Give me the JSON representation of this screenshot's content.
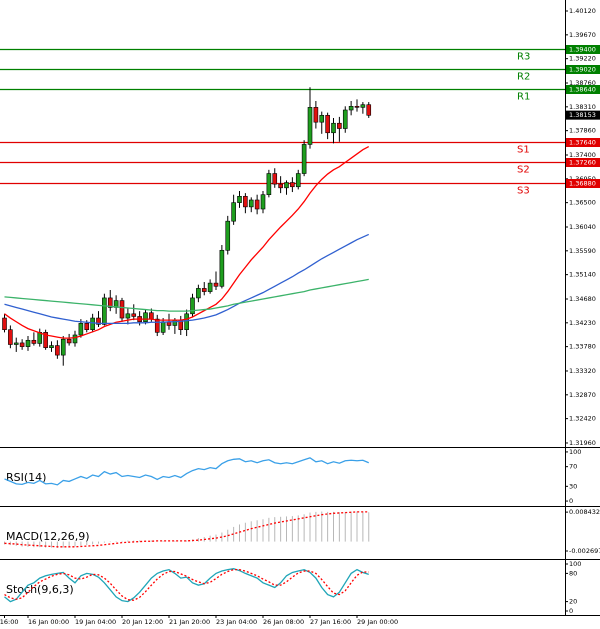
{
  "chart_data": [
    {
      "type": "candlestick",
      "categories": [
        "16:00",
        null,
        null,
        null,
        "16 Jan 00:00",
        null,
        null,
        null,
        null,
        null,
        null,
        null,
        "19 Jan 04:00",
        null,
        null,
        null,
        null,
        null,
        null,
        null,
        "20 Jan 12:00",
        null,
        null,
        null,
        null,
        null,
        null,
        null,
        "21 Jan 20:00",
        null,
        null,
        null,
        null,
        null,
        null,
        null,
        "23 Jan 04:00",
        null,
        null,
        null,
        null,
        null,
        null,
        null,
        "26 Jan 08:00",
        null,
        null,
        null,
        null,
        null,
        null,
        null,
        "27 Jan 16:00",
        null,
        null,
        null,
        null,
        null,
        null,
        null,
        "29 Jan 00:00",
        null,
        null
      ],
      "open": [
        1.3432,
        1.341,
        1.3382,
        1.3385,
        1.3378,
        1.339,
        1.3384,
        1.3405,
        1.3376,
        1.338,
        1.3362,
        1.3392,
        1.3385,
        1.34,
        1.3422,
        1.341,
        1.3432,
        1.342,
        1.347,
        1.3452,
        1.3465,
        1.3432,
        1.344,
        1.3435,
        1.3425,
        1.3442,
        1.343,
        1.3405,
        1.3425,
        1.3418,
        1.3428,
        1.341,
        1.344,
        1.347,
        1.3488,
        1.3482,
        1.3498,
        1.3492,
        1.356,
        1.3615,
        1.365,
        1.3662,
        1.3642,
        1.3655,
        1.3638,
        1.3665,
        1.3705,
        1.3685,
        1.3678,
        1.3688,
        1.368,
        1.3705,
        1.376,
        1.383,
        1.3802,
        1.3815,
        1.3782,
        1.38,
        1.379,
        1.3825,
        1.3832,
        1.383,
        1.3835
      ],
      "high": [
        1.344,
        1.3418,
        1.3395,
        1.3392,
        1.3398,
        1.3405,
        1.3412,
        1.341,
        1.3388,
        1.339,
        1.3398,
        1.3402,
        1.3408,
        1.343,
        1.3428,
        1.344,
        1.3445,
        1.3478,
        1.3485,
        1.3475,
        1.347,
        1.345,
        1.3458,
        1.3445,
        1.3448,
        1.345,
        1.3438,
        1.3432,
        1.344,
        1.3432,
        1.3436,
        1.3448,
        1.3478,
        1.3495,
        1.35,
        1.3505,
        1.352,
        1.357,
        1.3625,
        1.3665,
        1.3672,
        1.3668,
        1.366,
        1.3665,
        1.3672,
        1.3712,
        1.3715,
        1.37,
        1.3692,
        1.3698,
        1.3712,
        1.3768,
        1.3868,
        1.3842,
        1.3822,
        1.382,
        1.381,
        1.3812,
        1.3832,
        1.3842,
        1.3845,
        1.384,
        1.384
      ],
      "low": [
        1.3405,
        1.3375,
        1.3368,
        1.3372,
        1.337,
        1.338,
        1.3378,
        1.3372,
        1.3368,
        1.3355,
        1.3342,
        1.338,
        1.3378,
        1.3395,
        1.3405,
        1.3405,
        1.3415,
        1.3418,
        1.3445,
        1.344,
        1.3425,
        1.342,
        1.3428,
        1.3418,
        1.342,
        1.3425,
        1.3398,
        1.34,
        1.341,
        1.3402,
        1.34,
        1.3398,
        1.3435,
        1.3462,
        1.3475,
        1.3478,
        1.3485,
        1.3488,
        1.3552,
        1.3608,
        1.364,
        1.363,
        1.3632,
        1.3628,
        1.363,
        1.366,
        1.3678,
        1.3668,
        1.3665,
        1.367,
        1.3675,
        1.37,
        1.3752,
        1.379,
        1.378,
        1.377,
        1.3762,
        1.3765,
        1.3782,
        1.3815,
        1.3822,
        1.3818,
        1.381
      ],
      "close": [
        1.341,
        1.3382,
        1.3385,
        1.3378,
        1.339,
        1.3384,
        1.3405,
        1.3376,
        1.338,
        1.3362,
        1.3392,
        1.3385,
        1.34,
        1.3422,
        1.341,
        1.3432,
        1.342,
        1.347,
        1.3452,
        1.3465,
        1.3432,
        1.344,
        1.3435,
        1.3425,
        1.3442,
        1.343,
        1.3405,
        1.3425,
        1.3418,
        1.3428,
        1.341,
        1.344,
        1.347,
        1.3488,
        1.3482,
        1.3498,
        1.3492,
        1.356,
        1.3615,
        1.365,
        1.3662,
        1.3642,
        1.3655,
        1.3638,
        1.3665,
        1.3705,
        1.3685,
        1.3678,
        1.3688,
        1.368,
        1.3705,
        1.376,
        1.383,
        1.3802,
        1.3815,
        1.3782,
        1.38,
        1.379,
        1.3825,
        1.3832,
        1.383,
        1.3835,
        1.3815
      ],
      "up_color": "#1e9e1e",
      "down_color": "#e01010",
      "series": [
        {
          "color": "#ff0000",
          "values": [
            1.344,
            1.3432,
            1.3425,
            1.3418,
            1.3412,
            1.3408,
            1.3404,
            1.34,
            1.3398,
            1.3396,
            1.3394,
            1.3394,
            1.3395,
            1.3398,
            1.3402,
            1.3406,
            1.341,
            1.3416,
            1.342,
            1.3424,
            1.3426,
            1.3428,
            1.343,
            1.343,
            1.343,
            1.343,
            1.3428,
            1.3428,
            1.3428,
            1.3428,
            1.3428,
            1.343,
            1.3434,
            1.344,
            1.3446,
            1.3452,
            1.3458,
            1.3468,
            1.3482,
            1.3498,
            1.3514,
            1.3528,
            1.3542,
            1.3554,
            1.3566,
            1.358,
            1.3592,
            1.3604,
            1.3615,
            1.3626,
            1.3638,
            1.3652,
            1.3668,
            1.3682,
            1.3694,
            1.3704,
            1.3712,
            1.3718,
            1.3726,
            1.3734,
            1.3742,
            1.375,
            1.3756
          ]
        },
        {
          "color": "#3060d0",
          "values": [
            1.3458,
            1.3455,
            1.3452,
            1.3449,
            1.3446,
            1.3443,
            1.344,
            1.3437,
            1.3434,
            1.3432,
            1.343,
            1.3428,
            1.3426,
            1.3425,
            1.3424,
            1.3423,
            1.3422,
            1.3422,
            1.3422,
            1.3422,
            1.3422,
            1.3422,
            1.3423,
            1.3423,
            1.3423,
            1.3424,
            1.3424,
            1.3424,
            1.3425,
            1.3425,
            1.3426,
            1.3427,
            1.3428,
            1.343,
            1.3432,
            1.3435,
            1.3438,
            1.3443,
            1.3448,
            1.3454,
            1.346,
            1.3465,
            1.347,
            1.3475,
            1.348,
            1.3486,
            1.3492,
            1.3498,
            1.3504,
            1.351,
            1.3517,
            1.3523,
            1.353,
            1.3537,
            1.3544,
            1.355,
            1.3556,
            1.3562,
            1.3568,
            1.3574,
            1.358,
            1.3585,
            1.359
          ]
        },
        {
          "color": "#3cb36a",
          "values": [
            1.3472,
            1.3471,
            1.347,
            1.3469,
            1.3468,
            1.3467,
            1.3466,
            1.3465,
            1.3464,
            1.3463,
            1.3462,
            1.3461,
            1.346,
            1.3459,
            1.3458,
            1.3457,
            1.3456,
            1.3455,
            1.3454,
            1.3453,
            1.3452,
            1.3451,
            1.345,
            1.3449,
            1.3448,
            1.3447,
            1.3446,
            1.3446,
            1.3445,
            1.3445,
            1.3445,
            1.3445,
            1.3446,
            1.3447,
            1.3448,
            1.3449,
            1.3451,
            1.3453,
            1.3455,
            1.3458,
            1.346,
            1.3462,
            1.3464,
            1.3466,
            1.3468,
            1.347,
            1.3472,
            1.3474,
            1.3476,
            1.3478,
            1.348,
            1.3482,
            1.3485,
            1.3487,
            1.3489,
            1.3491,
            1.3493,
            1.3495,
            1.3497,
            1.3499,
            1.3501,
            1.3503,
            1.3505
          ]
        }
      ],
      "ylim": [
        1.31884,
        1.40328
      ],
      "yticks": [
        {
          "value": 1.4012,
          "label": "1.40120"
        },
        {
          "value": 1.3967,
          "label": "1.39670"
        },
        {
          "value": 1.3922,
          "label": "1.39220"
        },
        {
          "value": 1.3876,
          "label": "1.38760"
        },
        {
          "value": 1.3831,
          "label": "1.38310"
        },
        {
          "value": 1.3786,
          "label": "1.37860"
        },
        {
          "value": 1.374,
          "label": "1.37400"
        },
        {
          "value": 1.3695,
          "label": "1.36950"
        },
        {
          "value": 1.365,
          "label": "1.36500"
        },
        {
          "value": 1.3604,
          "label": "1.36040"
        },
        {
          "value": 1.3559,
          "label": "1.35590"
        },
        {
          "value": 1.3514,
          "label": "1.35140"
        },
        {
          "value": 1.3468,
          "label": "1.34680"
        },
        {
          "value": 1.3423,
          "label": "1.34230"
        },
        {
          "value": 1.3378,
          "label": "1.33780"
        },
        {
          "value": 1.3332,
          "label": "1.33320"
        },
        {
          "value": 1.3287,
          "label": "1.32870"
        },
        {
          "value": 1.3242,
          "label": "1.32420"
        },
        {
          "value": 1.3196,
          "label": "1.31960"
        }
      ],
      "levels": [
        {
          "label": "R3",
          "value": 1.394,
          "value_label": "1.39400",
          "color": "#008000"
        },
        {
          "label": "R2",
          "value": 1.3902,
          "value_label": "1.39020",
          "color": "#008000"
        },
        {
          "label": "R1",
          "value": 1.3864,
          "value_label": "1.38640",
          "color": "#008000"
        },
        {
          "label": "S1",
          "value": 1.3764,
          "value_label": "1.37640",
          "color": "#e00000"
        },
        {
          "label": "S2",
          "value": 1.3726,
          "value_label": "1.37260",
          "color": "#e00000"
        },
        {
          "label": "S3",
          "value": 1.3688,
          "value_label": "1.36880",
          "color": "#e00000"
        }
      ],
      "current": {
        "value": 1.38153,
        "label": "1.38153",
        "color": "#000000"
      }
    },
    {
      "type": "line",
      "title": "RSI(14)",
      "ylim": [
        -8,
        108
      ],
      "yticks": [
        100,
        70,
        30,
        0
      ],
      "series": [
        {
          "color": "#3aa0e8",
          "values": [
            45,
            40,
            35,
            34,
            38,
            36,
            42,
            35,
            36,
            33,
            42,
            40,
            45,
            50,
            46,
            53,
            50,
            60,
            55,
            58,
            50,
            52,
            50,
            48,
            53,
            50,
            44,
            50,
            48,
            52,
            48,
            56,
            62,
            66,
            64,
            68,
            66,
            76,
            82,
            85,
            86,
            80,
            82,
            78,
            82,
            84,
            78,
            76,
            78,
            76,
            80,
            84,
            88,
            80,
            82,
            76,
            80,
            77,
            82,
            83,
            82,
            83,
            78
          ]
        }
      ]
    },
    {
      "type": "bar",
      "title": "MACD(12,26,9)",
      "ylim": [
        -0.0047,
        0.0099
      ],
      "yticks": [
        0.008432,
        -0.002697
      ],
      "series": [
        {
          "type": "bar",
          "color": "#b8b8b8",
          "values": [
            -0.0008,
            -0.001,
            -0.0012,
            -0.0014,
            -0.0015,
            -0.0016,
            -0.0016,
            -0.0017,
            -0.0017,
            -0.0018,
            -0.0017,
            -0.0016,
            -0.0014,
            -0.0012,
            -0.001,
            -0.0008,
            -0.0006,
            -0.0003,
            -0.0001,
            0.0001,
            0.0002,
            0.0003,
            0.0003,
            0.0003,
            0.0003,
            0.0003,
            0.0002,
            0.0002,
            0.0002,
            0.0002,
            0.0002,
            0.0003,
            0.0006,
            0.001,
            0.0013,
            0.0017,
            0.002,
            0.0026,
            0.0034,
            0.0042,
            0.0049,
            0.0054,
            0.0058,
            0.0061,
            0.0064,
            0.0068,
            0.007,
            0.0071,
            0.0072,
            0.0073,
            0.0075,
            0.0078,
            0.0083,
            0.0085,
            0.0086,
            0.0085,
            0.0085,
            0.0084,
            0.0085,
            0.0086,
            0.0086,
            0.0086,
            0.0084
          ]
        },
        {
          "type": "line",
          "color": "#ff0000",
          "dash": true,
          "values": [
            -0.0005,
            -0.0006,
            -0.0007,
            -0.0009,
            -0.001,
            -0.0011,
            -0.0012,
            -0.0013,
            -0.0014,
            -0.0015,
            -0.0015,
            -0.0015,
            -0.0015,
            -0.0014,
            -0.0013,
            -0.0012,
            -0.0011,
            -0.0009,
            -0.0007,
            -0.0005,
            -0.0003,
            -0.0002,
            -0.0001,
            0,
            0.0001,
            0.0001,
            0.0002,
            0.0002,
            0.0002,
            0.0002,
            0.0002,
            0.0002,
            0.0003,
            0.0004,
            0.0006,
            0.0008,
            0.001,
            0.0013,
            0.0017,
            0.0022,
            0.0027,
            0.0032,
            0.0037,
            0.0041,
            0.0045,
            0.0049,
            0.0053,
            0.0056,
            0.0059,
            0.0062,
            0.0065,
            0.0068,
            0.0071,
            0.0074,
            0.0077,
            0.0079,
            0.0081,
            0.0082,
            0.0083,
            0.0084,
            0.0085,
            0.0085,
            0.0085
          ]
        }
      ]
    },
    {
      "type": "line",
      "title": "Stoch(9,6,3)",
      "ylim": [
        -8.5,
        108.5
      ],
      "yticks": [
        100,
        80,
        20,
        0
      ],
      "series": [
        {
          "color": "#1fa5b8",
          "values": [
            30,
            20,
            25,
            40,
            55,
            60,
            70,
            75,
            78,
            80,
            82,
            70,
            60,
            75,
            80,
            78,
            72,
            60,
            45,
            30,
            22,
            20,
            28,
            40,
            55,
            70,
            80,
            85,
            88,
            80,
            70,
            72,
            60,
            55,
            58,
            70,
            80,
            85,
            88,
            90,
            86,
            80,
            75,
            70,
            60,
            55,
            50,
            60,
            75,
            82,
            85,
            88,
            82,
            70,
            50,
            35,
            30,
            40,
            60,
            80,
            88,
            82,
            78
          ]
        },
        {
          "color": "#ff0000",
          "dash": true,
          "values": [
            35,
            28,
            25,
            28,
            40,
            52,
            62,
            68,
            74,
            78,
            80,
            77,
            70,
            68,
            72,
            78,
            77,
            70,
            59,
            45,
            32,
            24,
            23,
            29,
            41,
            55,
            68,
            78,
            84,
            84,
            79,
            74,
            67,
            62,
            58,
            61,
            69,
            78,
            84,
            88,
            88,
            85,
            80,
            75,
            68,
            62,
            55,
            55,
            62,
            72,
            81,
            85,
            85,
            80,
            67,
            52,
            38,
            35,
            43,
            60,
            76,
            83,
            83
          ]
        }
      ]
    }
  ]
}
